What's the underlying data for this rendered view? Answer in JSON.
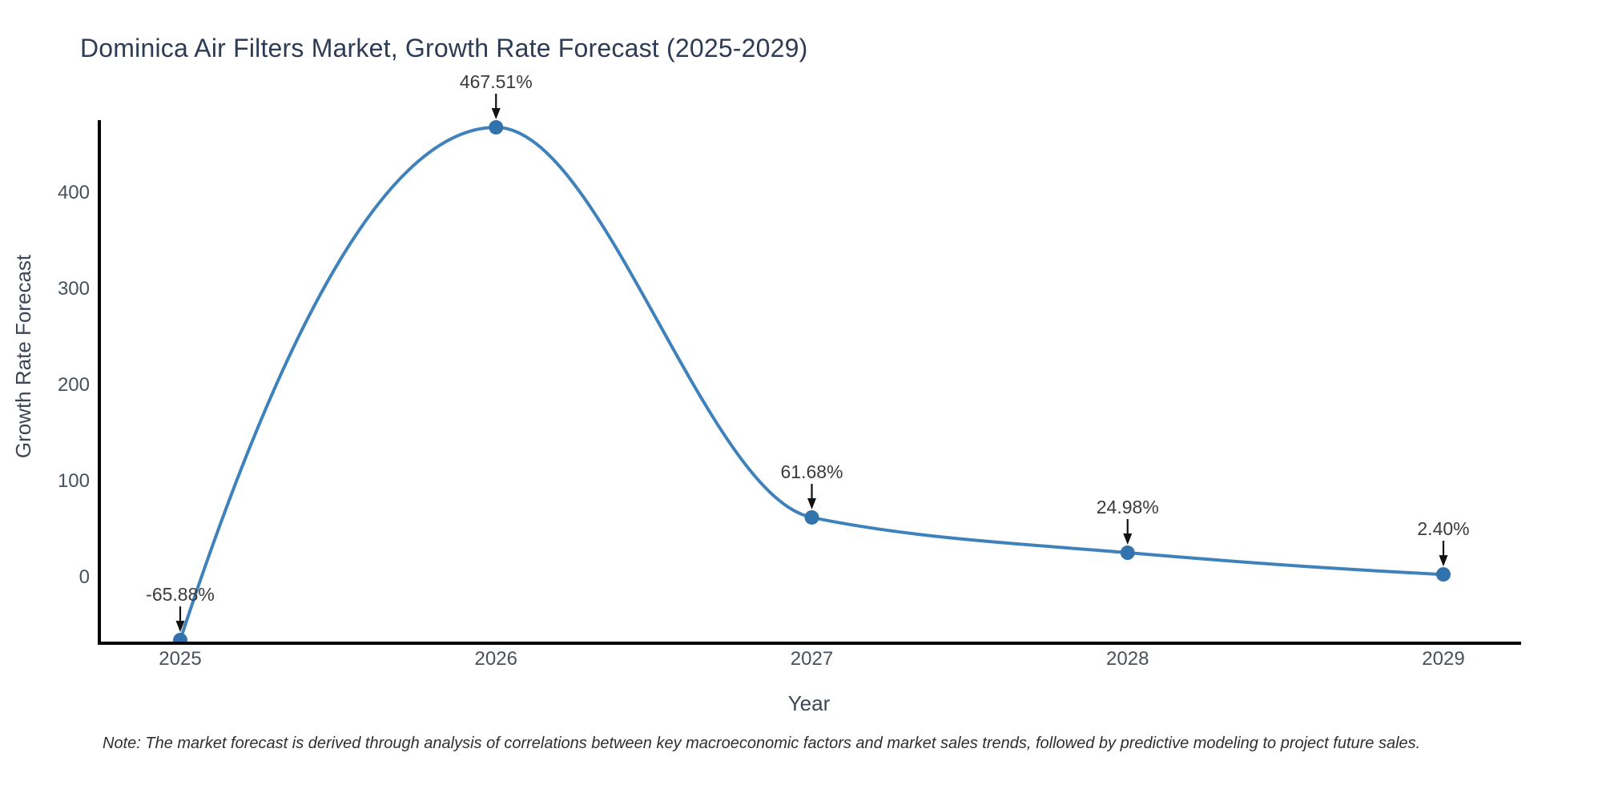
{
  "note": "Note: The market forecast is derived through analysis of correlations between key macroeconomic factors and market sales trends, followed by predictive modeling to project future sales.",
  "colors": {
    "line": "#3f81ba",
    "marker": "#3273ad",
    "axis": "#000000",
    "tick_text": "#47515c",
    "axis_title_text": "#3d4554",
    "annotation_text": "#3b3b3b",
    "arrow": "#111111",
    "title_text": "#2e3b55",
    "note_text": "#2f2f2f",
    "background": "#ffffff"
  },
  "chart_data": {
    "type": "line",
    "title": "Dominica Air Filters Market, Growth Rate Forecast (2025-2029)",
    "xlabel": "Year",
    "ylabel": "Growth Rate Forecast",
    "x": [
      2025,
      2026,
      2027,
      2028,
      2029
    ],
    "values": [
      -65.88,
      467.51,
      61.68,
      24.98,
      2.4
    ],
    "point_labels": [
      "-65.88%",
      "467.51%",
      "61.68%",
      "24.98%",
      "2.40%"
    ],
    "yticks": [
      0,
      100,
      200,
      300,
      400
    ],
    "ylim": [
      -69,
      471
    ],
    "line_shape": "monotone-spline",
    "grid": false,
    "legend": false,
    "annotation_style": "value label with downward arrow to each point"
  }
}
